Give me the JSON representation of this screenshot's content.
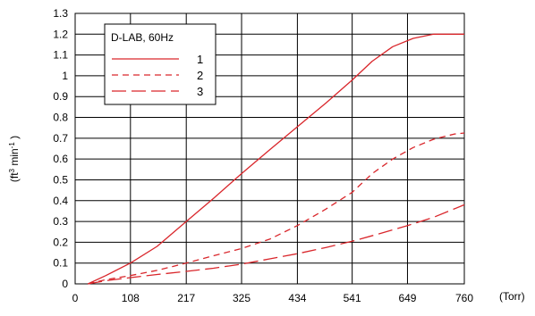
{
  "chart_data": {
    "type": "line",
    "title": "",
    "xlabel": "(Torr)",
    "ylabel_prefix": "(ft",
    "ylabel_sup1": "3",
    "ylabel_mid": " min",
    "ylabel_sup2": "-1",
    "ylabel_suffix": " )",
    "x_ticks": [
      0,
      108,
      217,
      325,
      434,
      541,
      649,
      760
    ],
    "y_ticks": [
      0,
      0.1,
      0.2,
      0.3,
      0.4,
      0.5,
      0.6,
      0.7,
      0.8,
      0.9,
      1,
      1.1,
      1.2,
      1.3
    ],
    "y_tick_labels": [
      "0",
      "0.1",
      "0.2",
      "0.3",
      "0.4",
      "0.5",
      "0.6",
      "0.7",
      "0.8",
      "0.9",
      "1",
      "1.1",
      "1.2",
      "1.3"
    ],
    "xlim": [
      0,
      760
    ],
    "ylim": [
      0,
      1.3
    ],
    "grid": true,
    "legend": {
      "title": "D-LAB, 60Hz",
      "placement": "top-left"
    },
    "color": "#d9262b",
    "series": [
      {
        "name": "1",
        "style": "solid",
        "x": [
          25,
          60,
          108,
          160,
          217,
          270,
          325,
          380,
          434,
          490,
          541,
          580,
          620,
          660,
          700,
          740,
          760
        ],
        "y": [
          0,
          0.04,
          0.1,
          0.18,
          0.3,
          0.41,
          0.53,
          0.645,
          0.755,
          0.87,
          0.98,
          1.07,
          1.14,
          1.18,
          1.2,
          1.2,
          1.2
        ]
      },
      {
        "name": "2",
        "style": "dashed",
        "x": [
          25,
          60,
          108,
          160,
          217,
          270,
          325,
          380,
          434,
          490,
          541,
          580,
          620,
          660,
          700,
          740,
          760
        ],
        "y": [
          0,
          0.02,
          0.04,
          0.065,
          0.1,
          0.135,
          0.17,
          0.215,
          0.28,
          0.36,
          0.44,
          0.53,
          0.6,
          0.655,
          0.695,
          0.72,
          0.725
        ]
      },
      {
        "name": "3",
        "style": "dashdash",
        "x": [
          25,
          60,
          108,
          160,
          217,
          270,
          325,
          380,
          434,
          490,
          541,
          600,
          649,
          700,
          760
        ],
        "y": [
          0,
          0.015,
          0.03,
          0.045,
          0.06,
          0.075,
          0.095,
          0.12,
          0.145,
          0.175,
          0.205,
          0.245,
          0.28,
          0.32,
          0.38
        ]
      }
    ]
  }
}
